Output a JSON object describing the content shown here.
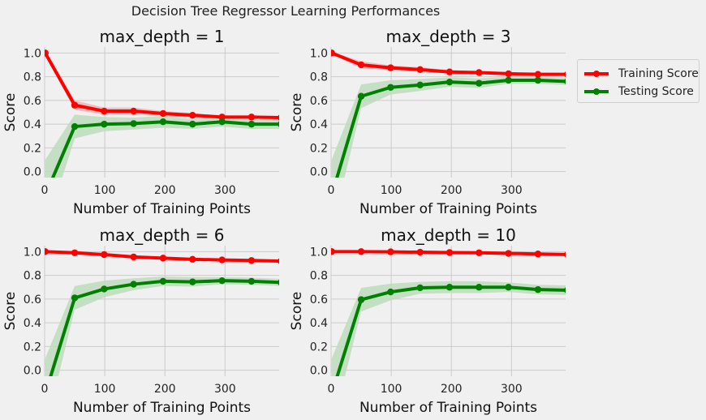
{
  "suptitle": "Decision Tree Regressor Learning Performances",
  "legend": [
    {
      "label": "Training Score",
      "color": "#ff0000"
    },
    {
      "label": "Testing Score",
      "color": "#008000"
    }
  ],
  "colors": {
    "train": "#ff0000",
    "test": "#008000",
    "train_band": "#f4b3b3",
    "test_band": "#bcdcbc",
    "grid": "#cbcbcb",
    "background": "#f0f0f0"
  },
  "chart_data": [
    {
      "type": "line",
      "title": "max_depth = 1",
      "xlabel": "Number of Training Points",
      "ylabel": "Score",
      "xlim": [
        0,
        390
      ],
      "ylim": [
        -0.05,
        1.05
      ],
      "xticks": [
        "0",
        "100",
        "200",
        "300"
      ],
      "yticks": [
        "0.0",
        "0.2",
        "0.4",
        "0.6",
        "0.8",
        "1.0"
      ],
      "grid": true,
      "x": [
        1,
        50,
        99,
        148,
        197,
        246,
        295,
        344,
        393
      ],
      "series": [
        {
          "name": "Training Score",
          "values": [
            1.0,
            0.56,
            0.51,
            0.51,
            0.49,
            0.475,
            0.46,
            0.46,
            0.455
          ],
          "band": [
            0.02,
            0.04,
            0.03,
            0.03,
            0.02,
            0.02,
            0.01,
            0.01,
            0.01
          ]
        },
        {
          "name": "Testing Score",
          "values": [
            -0.2,
            0.38,
            0.4,
            0.405,
            0.42,
            0.4,
            0.42,
            0.4,
            0.4
          ],
          "band": [
            0.3,
            0.1,
            0.06,
            0.05,
            0.05,
            0.04,
            0.04,
            0.04,
            0.04
          ]
        }
      ]
    },
    {
      "type": "line",
      "title": "max_depth = 3",
      "xlabel": "Number of Training Points",
      "ylabel": "Score",
      "xlim": [
        0,
        390
      ],
      "ylim": [
        -0.05,
        1.05
      ],
      "xticks": [
        "0",
        "100",
        "200",
        "300"
      ],
      "yticks": [
        "0.0",
        "0.2",
        "0.4",
        "0.6",
        "0.8",
        "1.0"
      ],
      "grid": true,
      "x": [
        1,
        50,
        99,
        148,
        197,
        246,
        295,
        344,
        393
      ],
      "series": [
        {
          "name": "Training Score",
          "values": [
            1.0,
            0.9,
            0.875,
            0.86,
            0.84,
            0.835,
            0.825,
            0.82,
            0.82
          ],
          "band": [
            0.01,
            0.03,
            0.02,
            0.02,
            0.015,
            0.01,
            0.01,
            0.01,
            0.01
          ]
        },
        {
          "name": "Testing Score",
          "values": [
            -0.2,
            0.635,
            0.71,
            0.73,
            0.755,
            0.745,
            0.77,
            0.77,
            0.76
          ],
          "band": [
            0.3,
            0.1,
            0.06,
            0.05,
            0.04,
            0.04,
            0.03,
            0.03,
            0.03
          ]
        }
      ]
    },
    {
      "type": "line",
      "title": "max_depth = 6",
      "xlabel": "Number of Training Points",
      "ylabel": "Score",
      "xlim": [
        0,
        390
      ],
      "ylim": [
        -0.05,
        1.05
      ],
      "xticks": [
        "0",
        "100",
        "200",
        "300"
      ],
      "yticks": [
        "0.0",
        "0.2",
        "0.4",
        "0.6",
        "0.8",
        "1.0"
      ],
      "grid": true,
      "x": [
        1,
        50,
        99,
        148,
        197,
        246,
        295,
        344,
        393
      ],
      "series": [
        {
          "name": "Training Score",
          "values": [
            1.0,
            0.99,
            0.975,
            0.955,
            0.945,
            0.935,
            0.93,
            0.925,
            0.92
          ],
          "band": [
            0.005,
            0.01,
            0.01,
            0.01,
            0.01,
            0.01,
            0.01,
            0.01,
            0.01
          ]
        },
        {
          "name": "Testing Score",
          "values": [
            -0.2,
            0.61,
            0.685,
            0.725,
            0.75,
            0.745,
            0.755,
            0.75,
            0.74
          ],
          "band": [
            0.3,
            0.1,
            0.07,
            0.05,
            0.04,
            0.04,
            0.03,
            0.03,
            0.03
          ]
        }
      ]
    },
    {
      "type": "line",
      "title": "max_depth = 10",
      "xlabel": "Number of Training Points",
      "ylabel": "Score",
      "xlim": [
        0,
        390
      ],
      "ylim": [
        -0.05,
        1.05
      ],
      "xticks": [
        "0",
        "100",
        "200",
        "300"
      ],
      "yticks": [
        "0.0",
        "0.2",
        "0.4",
        "0.6",
        "0.8",
        "1.0"
      ],
      "grid": true,
      "x": [
        1,
        50,
        99,
        148,
        197,
        246,
        295,
        344,
        393
      ],
      "series": [
        {
          "name": "Training Score",
          "values": [
            1.0,
            1.0,
            0.998,
            0.995,
            0.992,
            0.99,
            0.985,
            0.98,
            0.975
          ],
          "band": [
            0.003,
            0.003,
            0.004,
            0.004,
            0.004,
            0.005,
            0.005,
            0.005,
            0.005
          ]
        },
        {
          "name": "Testing Score",
          "values": [
            -0.2,
            0.595,
            0.66,
            0.695,
            0.7,
            0.7,
            0.7,
            0.68,
            0.675
          ],
          "band": [
            0.3,
            0.1,
            0.07,
            0.05,
            0.05,
            0.05,
            0.04,
            0.04,
            0.04
          ]
        }
      ]
    }
  ]
}
